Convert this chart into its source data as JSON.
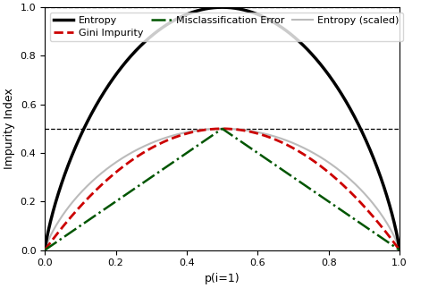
{
  "title": "",
  "xlabel": "p(i=1)",
  "ylabel": "Impurity Index",
  "xlim": [
    0.0,
    1.0
  ],
  "ylim": [
    0.0,
    1.0
  ],
  "xticks": [
    0.0,
    0.2,
    0.4,
    0.6,
    0.8,
    1.0
  ],
  "yticks": [
    0.0,
    0.2,
    0.4,
    0.6,
    0.8,
    1.0
  ],
  "hlines": [
    0.5,
    1.0
  ],
  "hline_color": "#000000",
  "hline_style": "--",
  "hline_lw": 0.9,
  "entropy_color": "#000000",
  "entropy_lw": 2.5,
  "entropy_scaled_color": "#bbbbbb",
  "entropy_scaled_lw": 1.5,
  "gini_color": "#cc0000",
  "gini_style": "--",
  "gini_lw": 2.0,
  "misclass_color": "#005500",
  "misclass_style": "-.",
  "misclass_lw": 1.8,
  "legend_fontsize": 8,
  "figsize": [
    4.8,
    3.22
  ],
  "dpi": 100,
  "background_color": "#ffffff"
}
